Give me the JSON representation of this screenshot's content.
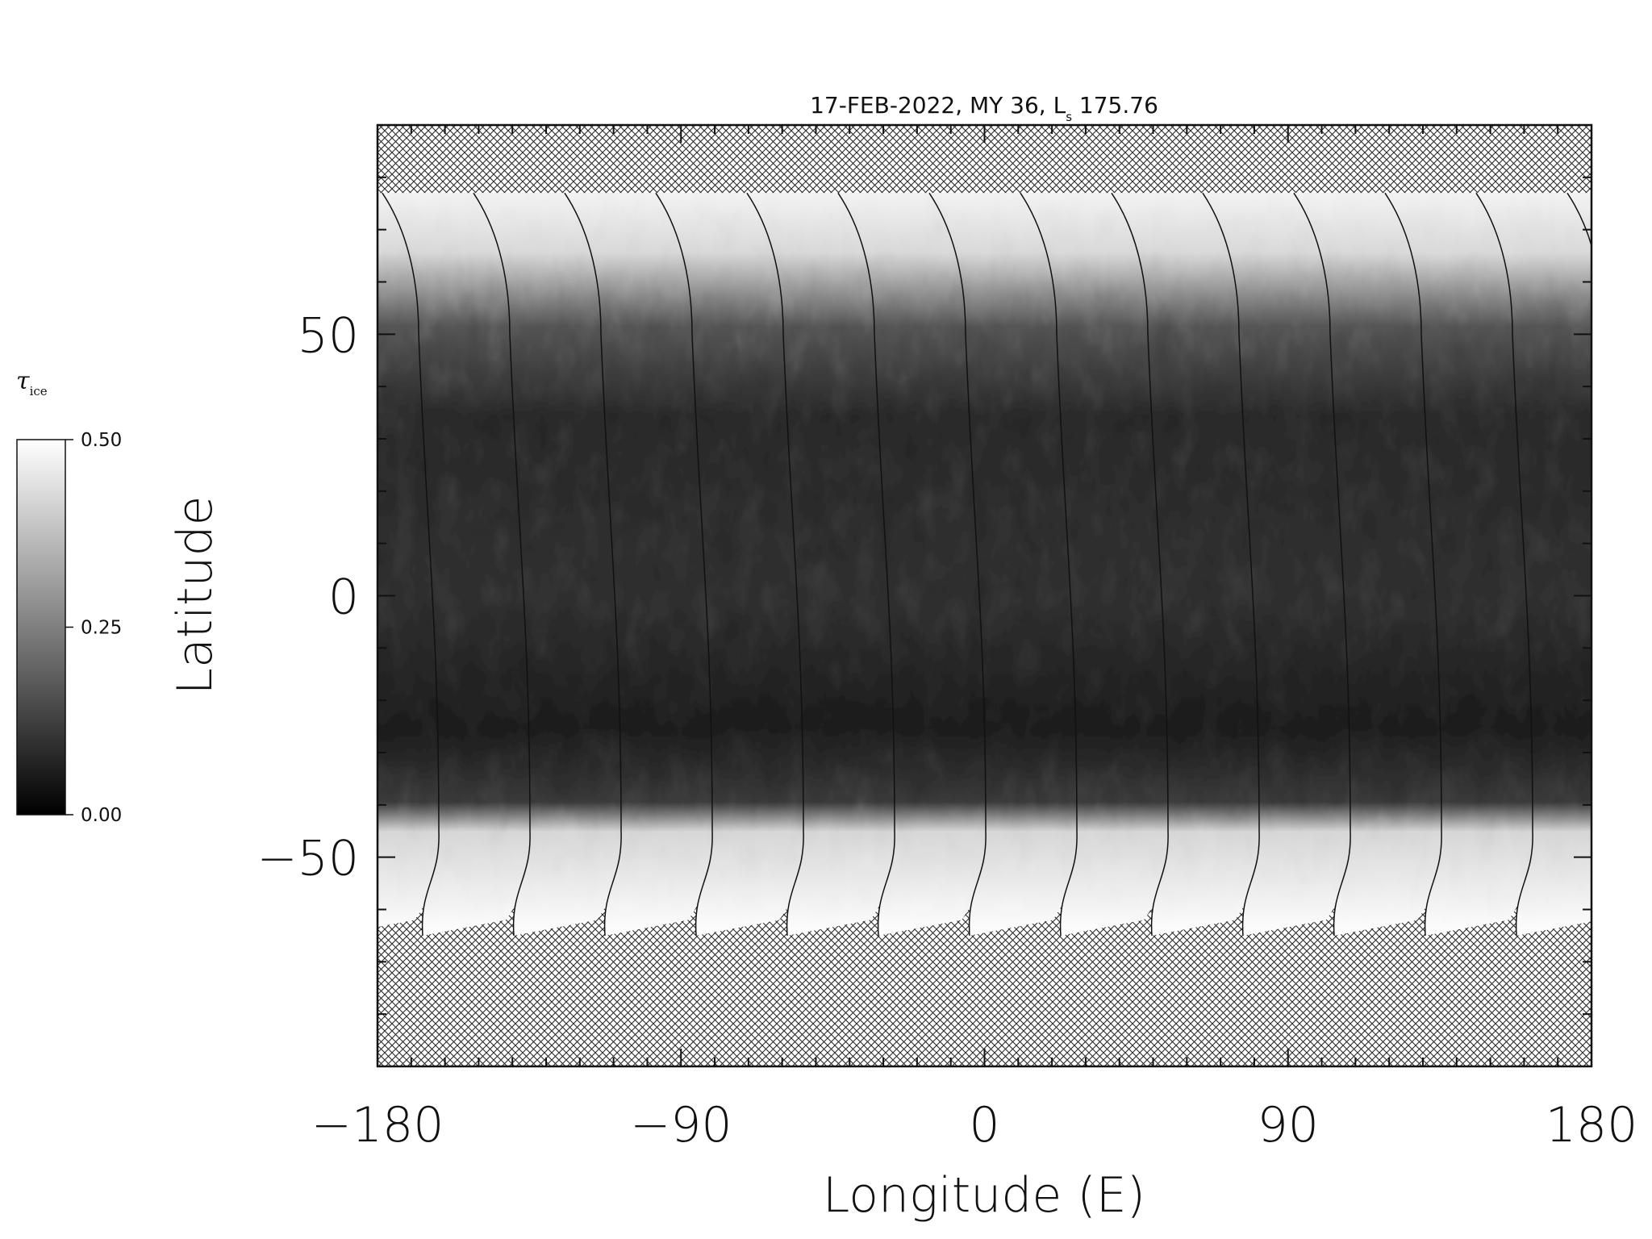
{
  "title": {
    "prefix": "17-FEB-2022, MY 36,  L",
    "sub": "s",
    "suffix": " 175.76"
  },
  "map": {
    "xlabel": "Longitude (E)",
    "ylabel": "Latitude",
    "xlim": [
      -180,
      180
    ],
    "ylim": [
      -90,
      90
    ],
    "xticks": [
      -180,
      -90,
      0,
      90,
      180
    ],
    "xtick_labels": [
      "−180",
      "−90",
      "0",
      "90",
      "180"
    ],
    "yticks": [
      50,
      0,
      -50
    ],
    "ytick_labels": [
      "50",
      "0",
      "−50"
    ],
    "no_data_pattern": "crosshatch",
    "colors": {
      "axis": "#111111",
      "hatch": "#222222"
    }
  },
  "swaths": {
    "count": 13,
    "lat_top": 77,
    "lat_bottom": -65,
    "north_cap_lat_min": 60,
    "south_cap_lat_max": -48
  },
  "colorbar": {
    "label_symbol": "τ",
    "label_sub": "ice",
    "min": 0,
    "max": 0.5,
    "tick_labels": [
      "0.50",
      "0.25",
      "0.00"
    ],
    "ticks": [
      0.5,
      0.25,
      0.0
    ],
    "colormap": "grayscale",
    "colors": {
      "low": "#000000",
      "high": "#ffffff"
    }
  }
}
